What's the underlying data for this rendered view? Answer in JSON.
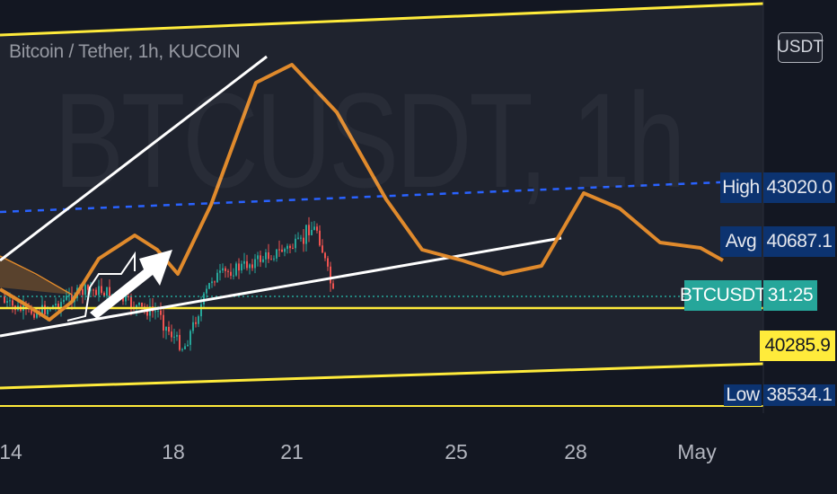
{
  "chart_data": {
    "type": "line",
    "title": "Bitcoin / Tether, 1h, KUCOIN",
    "watermark": "BTCUSDT, 1h",
    "currency": "USDT",
    "x_tick_labels": [
      "14",
      "18",
      "21",
      "25",
      "28",
      "May"
    ],
    "price_tags": {
      "high_label": "High",
      "high_value": "43020.0",
      "avg_label": "Avg",
      "avg_value": "40687.1",
      "symbol_label": "BTCUSDT",
      "countdown": "31:25",
      "last_price": "40285.9",
      "low_label": "Low",
      "low_value": "38534.1"
    },
    "colors": {
      "background": "#131722",
      "projection_line": "#e08a2c",
      "channel": "#ffeb3b",
      "trendline": "#ffffff",
      "avg_line": "#2962ff",
      "candle_up": "#26a69a",
      "candle_down": "#ef5350"
    }
  }
}
